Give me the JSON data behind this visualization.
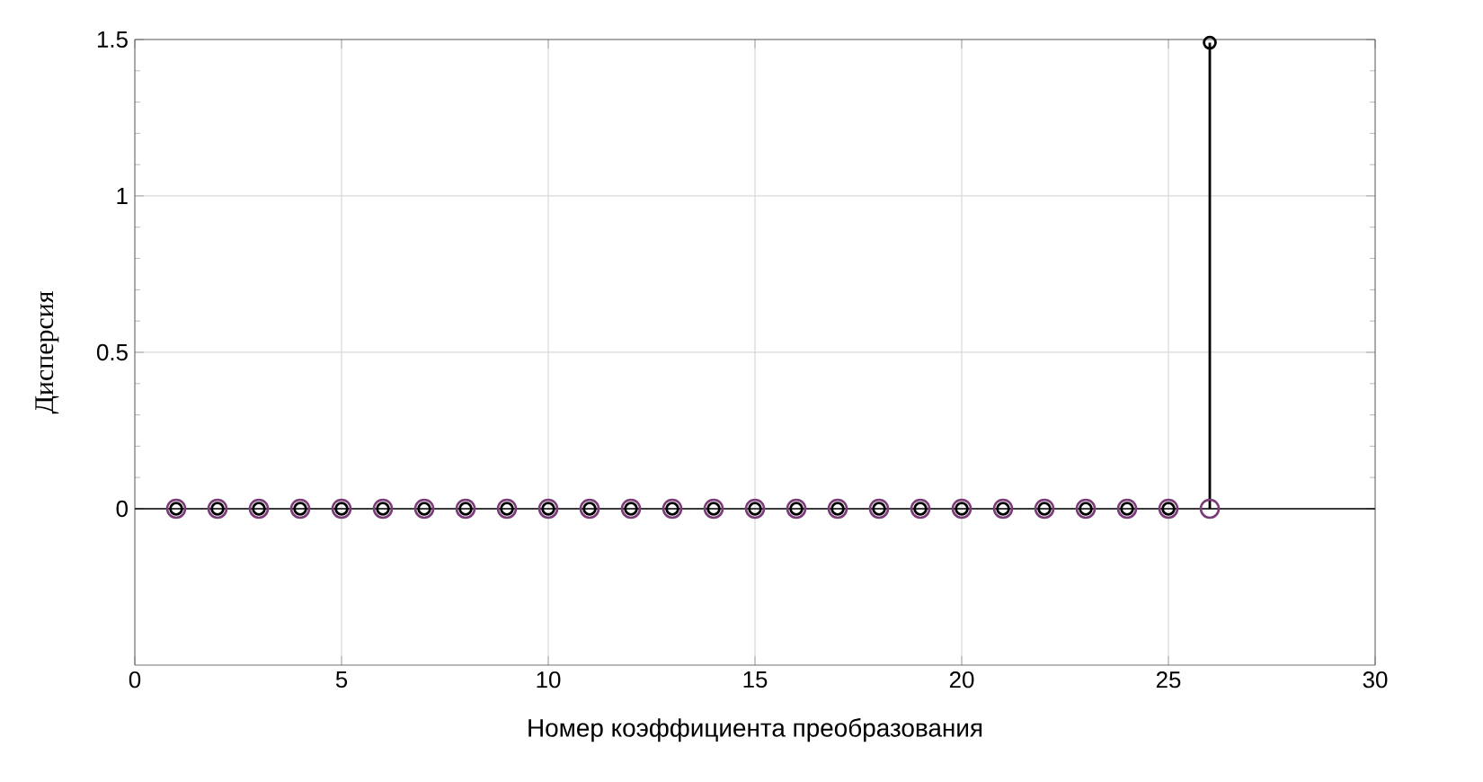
{
  "chart_data": {
    "type": "lollipop",
    "xlabel": "Номер коэффициента преобразования",
    "ylabel": "Дисперсия",
    "x": [
      1,
      2,
      3,
      4,
      5,
      6,
      7,
      8,
      9,
      10,
      11,
      12,
      13,
      14,
      15,
      16,
      17,
      18,
      19,
      20,
      21,
      22,
      23,
      24,
      25,
      26
    ],
    "series": [
      {
        "type": "scatter",
        "color": "#7b3a78",
        "marker": "circle",
        "values": [
          0,
          0,
          0,
          0,
          0,
          0,
          0,
          0,
          0,
          0,
          0,
          0,
          0,
          0,
          0,
          0,
          0,
          0,
          0,
          0,
          0,
          0,
          0,
          0,
          0,
          0
        ]
      },
      {
        "color": "#000000",
        "marker": "circle",
        "values": [
          0,
          0,
          0,
          0,
          0,
          0,
          0,
          0,
          0,
          0,
          0,
          0,
          0,
          0,
          0,
          0,
          0,
          0,
          0,
          0,
          0,
          0,
          0,
          0,
          0,
          1.49
        ]
      }
    ],
    "xlim": [
      0,
      30
    ],
    "xticks": [
      0,
      5,
      10,
      15,
      20,
      25,
      30
    ],
    "ylim": [
      -0.5,
      1.5
    ],
    "yticks": [
      0,
      0.5,
      1,
      1.5
    ],
    "grid": true,
    "ref_lines": [
      {
        "axis": "y",
        "value": 0,
        "color": "#000000"
      }
    ]
  }
}
